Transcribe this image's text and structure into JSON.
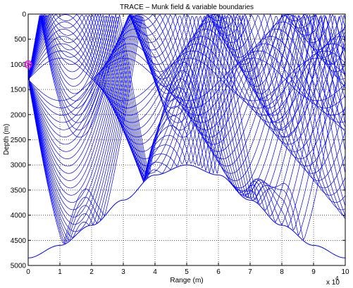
{
  "chart_data": {
    "type": "line",
    "title": "TRACE – Munk field & variable boundaries",
    "xlabel": "Range (m)",
    "ylabel": "Depth (m)",
    "x_multiplier_label": "x 10",
    "x_multiplier_exponent": "4",
    "xlim": [
      0,
      100000
    ],
    "ylim": [
      5000,
      0
    ],
    "y_reversed": true,
    "grid": true,
    "x_ticks": [
      0,
      10000,
      20000,
      30000,
      40000,
      50000,
      60000,
      70000,
      80000,
      90000,
      100000
    ],
    "x_tick_labels": [
      "0",
      "1",
      "2",
      "3",
      "4",
      "5",
      "6",
      "7",
      "8",
      "9",
      "10"
    ],
    "y_ticks": [
      0,
      500,
      1000,
      1500,
      2000,
      2500,
      3000,
      3500,
      4000,
      4500,
      5000
    ],
    "y_tick_labels": [
      "0",
      "500",
      "1000",
      "1500",
      "2000",
      "2500",
      "3000",
      "3500",
      "4000",
      "4500",
      "5000"
    ],
    "source": {
      "x": 0,
      "y": 1000,
      "marker": "pink circle with x"
    },
    "bottom_boundary": {
      "x": [
        0,
        10000,
        20000,
        30000,
        40000,
        50000,
        60000,
        70000,
        80000,
        90000,
        100000
      ],
      "y": [
        4850,
        4600,
        4200,
        3700,
        3200,
        3000,
        3200,
        3700,
        4200,
        4600,
        4850
      ]
    },
    "surface_boundary_depth": 0,
    "ray_fan": {
      "count": 48,
      "source_depth": 1000,
      "axis_depth": 1300
    },
    "colors": {
      "rays": "#0000ff",
      "source": "#ff00ff",
      "axes": "#000000",
      "grid": "#000000"
    }
  }
}
